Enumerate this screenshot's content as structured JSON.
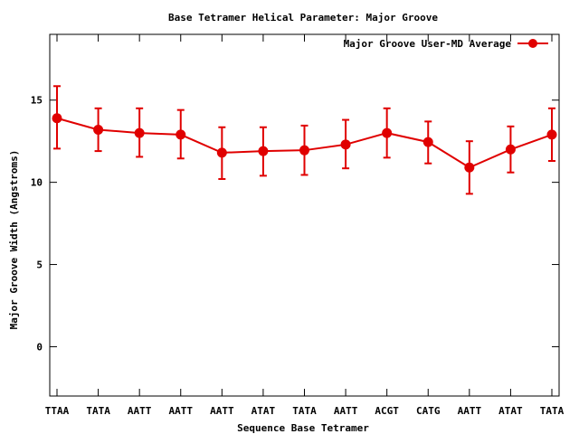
{
  "chart_data": {
    "type": "line",
    "title": "Base Tetramer Helical Parameter: Major Groove",
    "xlabel": "Sequence Base Tetramer",
    "ylabel": "Major Groove Width (Angstroms)",
    "categories": [
      "TTAA",
      "TATA",
      "AATT",
      "AATT",
      "AATT",
      "ATAT",
      "TATA",
      "AATT",
      "ACGT",
      "CATG",
      "AATT",
      "ATAT",
      "TATA"
    ],
    "ylim": [
      -3,
      19
    ],
    "yticks": [
      0,
      5,
      10,
      15
    ],
    "grid": false,
    "legend_position": "top-right",
    "series": [
      {
        "name": "Major Groove User-MD Average",
        "color": "#e00000",
        "values": [
          13.9,
          13.2,
          13.0,
          12.9,
          11.8,
          11.9,
          11.95,
          12.3,
          13.0,
          12.45,
          10.9,
          12.0,
          12.9
        ],
        "error_low": [
          12.05,
          11.9,
          11.55,
          11.45,
          10.2,
          10.4,
          10.45,
          10.85,
          11.5,
          11.15,
          9.3,
          10.6,
          11.3
        ],
        "error_high": [
          15.85,
          14.5,
          14.5,
          14.4,
          13.35,
          13.35,
          13.45,
          13.8,
          14.5,
          13.7,
          12.5,
          13.4,
          14.5
        ]
      }
    ]
  }
}
